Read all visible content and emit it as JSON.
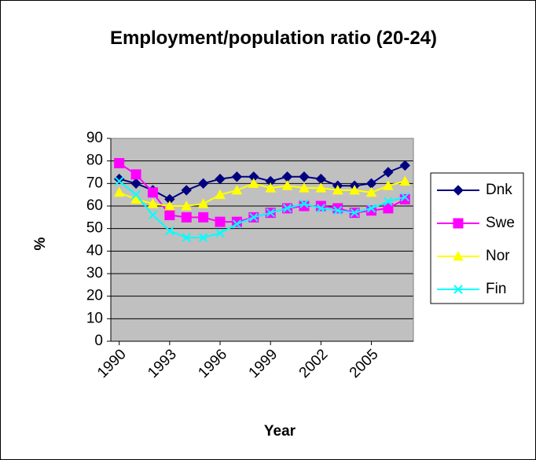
{
  "chart_data": {
    "type": "line",
    "title": "Employment/population ratio (20-24)",
    "x_label": "Year",
    "y_label": "%",
    "x": [
      1990,
      1991,
      1992,
      1993,
      1994,
      1995,
      1996,
      1997,
      1998,
      1999,
      2000,
      2001,
      2002,
      2003,
      2004,
      2005,
      2006,
      2007
    ],
    "xlim": [
      1989.5,
      2007.5
    ],
    "xticks": [
      1990,
      1993,
      1996,
      1999,
      2002,
      2005
    ],
    "ylim": [
      0,
      90
    ],
    "yticks": [
      0,
      10,
      20,
      30,
      40,
      50,
      60,
      70,
      80,
      90
    ],
    "grid": true,
    "legend": "right",
    "series": [
      {
        "name": "Dnk",
        "color": "#000080",
        "marker": "diamond",
        "values": [
          72,
          70,
          67,
          63,
          67,
          70,
          72,
          73,
          73,
          71,
          73,
          73,
          72,
          69,
          69,
          70,
          75,
          78
        ]
      },
      {
        "name": "Swe",
        "color": "#ff00ff",
        "marker": "square",
        "values": [
          79,
          74,
          66,
          56,
          55,
          55,
          53,
          53,
          55,
          57,
          59,
          60,
          60,
          59,
          57,
          58,
          59,
          63
        ]
      },
      {
        "name": "Nor",
        "color": "#ffff00",
        "marker": "triangle",
        "values": [
          66,
          63,
          61,
          60,
          60,
          61,
          65,
          67,
          70,
          68,
          69,
          68,
          68,
          67,
          67,
          66,
          69,
          71
        ]
      },
      {
        "name": "Fin",
        "color": "#00ffff",
        "marker": "x",
        "values": [
          71,
          65,
          56,
          49,
          46,
          46,
          48,
          52,
          55,
          57,
          59,
          61,
          59,
          58,
          57,
          59,
          62,
          64
        ]
      }
    ]
  }
}
